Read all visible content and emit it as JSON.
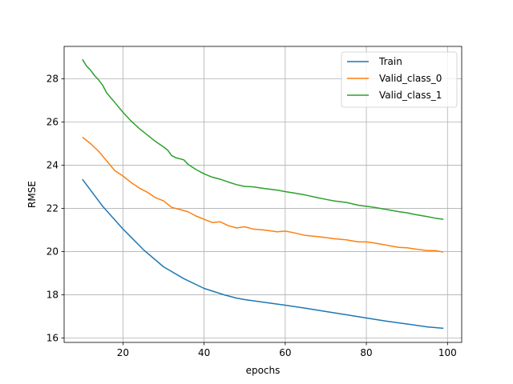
{
  "chart_data": {
    "type": "line",
    "xlabel": "epochs",
    "ylabel": "RMSE",
    "xlim": [
      5.5,
      103.5
    ],
    "ylim": [
      15.8,
      29.5
    ],
    "xticks": [
      20,
      40,
      60,
      80,
      100
    ],
    "yticks": [
      16,
      18,
      20,
      22,
      24,
      26,
      28
    ],
    "grid": true,
    "legend_position": "top-right",
    "series": [
      {
        "name": "Train",
        "color": "#1f77b4",
        "x": [
          10,
          12,
          15,
          20,
          25,
          30,
          35,
          40,
          45,
          48,
          50,
          55,
          60,
          65,
          70,
          75,
          80,
          85,
          90,
          95,
          99
        ],
        "values": [
          23.35,
          22.85,
          22.1,
          21.05,
          20.1,
          19.3,
          18.75,
          18.3,
          18.0,
          17.85,
          17.78,
          17.65,
          17.52,
          17.38,
          17.23,
          17.08,
          16.93,
          16.78,
          16.65,
          16.52,
          16.45
        ]
      },
      {
        "name": "Valid_class_0",
        "color": "#ff7f0e",
        "x": [
          10,
          12,
          14,
          16,
          18,
          20,
          22,
          24,
          26,
          28,
          30,
          32,
          34,
          36,
          38,
          40,
          42,
          44,
          46,
          48,
          50,
          52,
          55,
          58,
          60,
          62,
          65,
          68,
          70,
          72,
          75,
          78,
          80,
          82,
          85,
          88,
          90,
          92,
          95,
          97,
          99
        ],
        "values": [
          25.3,
          25.0,
          24.65,
          24.2,
          23.75,
          23.5,
          23.2,
          22.95,
          22.75,
          22.5,
          22.35,
          22.05,
          21.95,
          21.85,
          21.65,
          21.5,
          21.35,
          21.38,
          21.2,
          21.1,
          21.15,
          21.05,
          21.0,
          20.92,
          20.95,
          20.88,
          20.75,
          20.7,
          20.65,
          20.6,
          20.55,
          20.45,
          20.45,
          20.4,
          20.3,
          20.2,
          20.18,
          20.12,
          20.05,
          20.05,
          19.98
        ]
      },
      {
        "name": "Valid_class_1",
        "color": "#2ca02c",
        "x": [
          10,
          11,
          12,
          13,
          14,
          15,
          16,
          18,
          20,
          22,
          24,
          26,
          28,
          30,
          31,
          32,
          33,
          35,
          36,
          38,
          40,
          42,
          44,
          46,
          48,
          50,
          52,
          55,
          58,
          60,
          62,
          65,
          68,
          70,
          72,
          75,
          78,
          80,
          82,
          85,
          88,
          90,
          92,
          95,
          97,
          99
        ],
        "values": [
          28.9,
          28.6,
          28.4,
          28.15,
          27.95,
          27.7,
          27.35,
          26.9,
          26.45,
          26.05,
          25.7,
          25.4,
          25.1,
          24.85,
          24.7,
          24.45,
          24.35,
          24.25,
          24.05,
          23.8,
          23.6,
          23.45,
          23.35,
          23.22,
          23.1,
          23.02,
          23.0,
          22.92,
          22.85,
          22.78,
          22.72,
          22.62,
          22.5,
          22.42,
          22.35,
          22.28,
          22.15,
          22.1,
          22.05,
          21.95,
          21.85,
          21.8,
          21.72,
          21.62,
          21.55,
          21.5
        ]
      }
    ]
  }
}
